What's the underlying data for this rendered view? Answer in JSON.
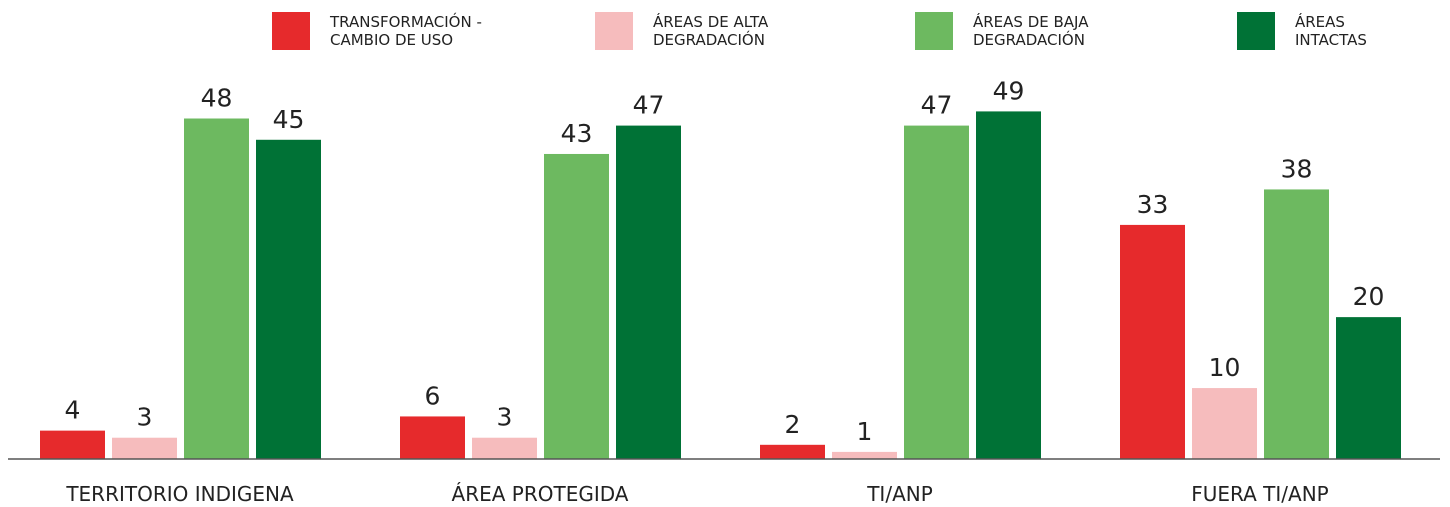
{
  "chart_data": {
    "type": "bar",
    "categories": [
      "TERRITORIO INDIGENA",
      "ÁREA PROTEGIDA",
      "TI/ANP",
      "FUERA TI/ANP"
    ],
    "series": [
      {
        "name": "TRANSFORMACIÓN -\nCAMBIO DE USO",
        "color": "#e62a2c",
        "values": [
          4,
          6,
          2,
          33
        ]
      },
      {
        "name": "ÁREAS DE ALTA\nDEGRADACIÓN",
        "color": "#f6bcbd",
        "values": [
          3,
          3,
          1,
          10
        ]
      },
      {
        "name": "ÁREAS DE BAJA\nDEGRADACIÓN",
        "color": "#6db960",
        "values": [
          48,
          43,
          47,
          38
        ]
      },
      {
        "name": "ÁREAS\nINTACTAS",
        "color": "#007236",
        "values": [
          45,
          47,
          49,
          20
        ]
      }
    ],
    "ylim": [
      0,
      64
    ],
    "legend": "top"
  }
}
